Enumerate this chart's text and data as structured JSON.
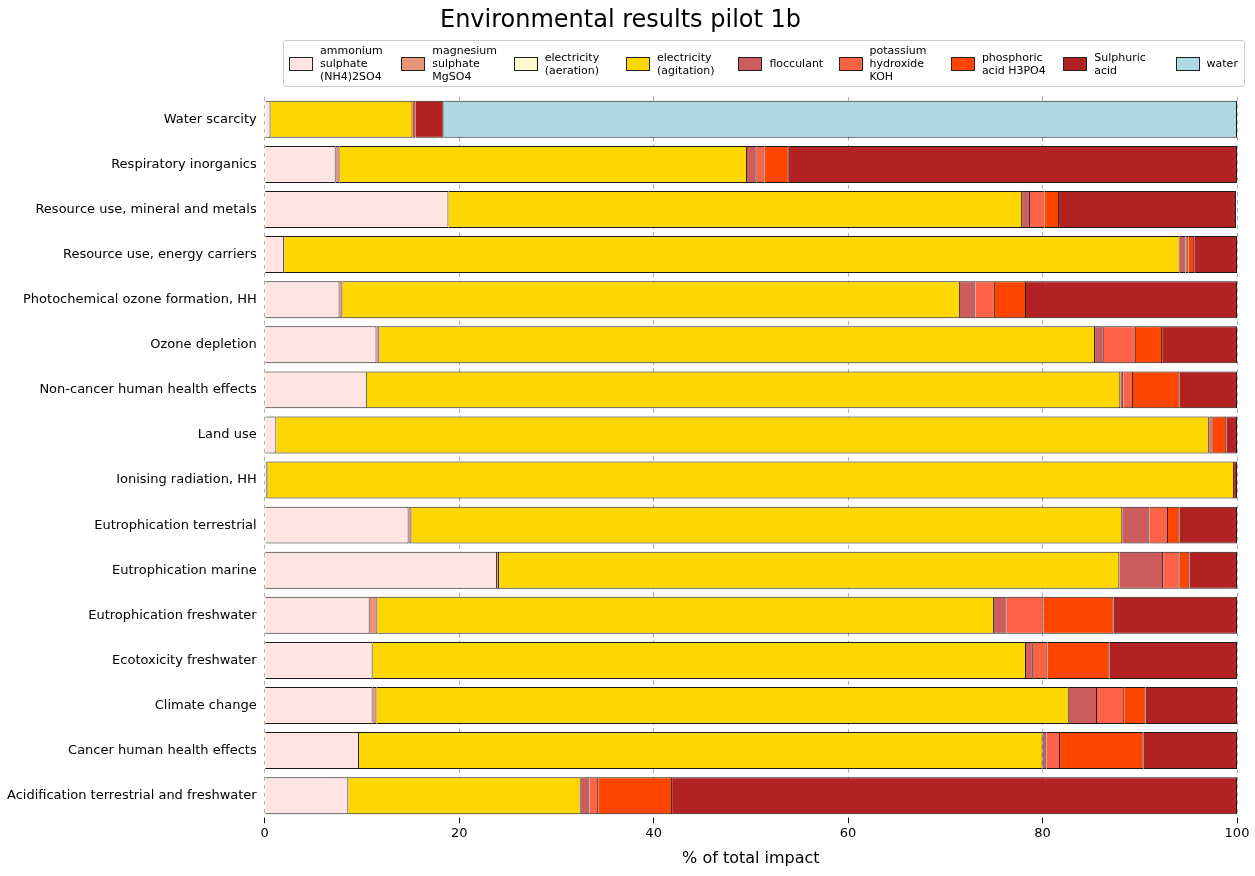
{
  "chart_data": {
    "type": "bar",
    "title": "Environmental results pilot 1b",
    "xlabel": "% of total impact",
    "orientation": "horizontal",
    "stacked": true,
    "grid": "x",
    "legend": "top",
    "xlim": [
      0,
      100
    ],
    "xticks": [
      0,
      20,
      40,
      60,
      80,
      100
    ],
    "categories": [
      "Water scarcity",
      "Respiratory inorganics",
      "Resource use, mineral and metals",
      "Resource use, energy carriers",
      "Photochemical ozone formation, HH",
      "Ozone depletion",
      "Non-cancer human health effects",
      "Land use",
      "Ionising radiation, HH",
      "Eutrophication terrestrial",
      "Eutrophication marine",
      "Eutrophication freshwater",
      "Ecotoxicity freshwater",
      "Climate change",
      "Cancer human health effects",
      "Acidification terrestrial and freshwater"
    ],
    "series": [
      {
        "name": "ammonium sulphate (NH4)2SO4",
        "color": "#ffe4e1",
        "values": [
          0.6,
          7.3,
          18.9,
          2.0,
          7.7,
          11.5,
          10.5,
          1.2,
          0.2,
          14.8,
          23.9,
          10.8,
          11.1,
          11.1,
          9.7,
          8.6
        ]
      },
      {
        "name": "magnesium sulphate MgSO4",
        "color": "#e9967a",
        "values": [
          0,
          0.4,
          null,
          0,
          0.3,
          0.3,
          0,
          0,
          0.1,
          0.3,
          0.2,
          0.8,
          0,
          0.4,
          0,
          0
        ]
      },
      {
        "name": "electricity (aeration)",
        "color": "#fffacd",
        "values": [
          0,
          0,
          0,
          0,
          0,
          0,
          0,
          0,
          0,
          0,
          0,
          0,
          0,
          0,
          0,
          0
        ]
      },
      {
        "name": "electricity (agitation)",
        "color": "#ffd700",
        "values": [
          14.6,
          41.9,
          59.0,
          92.1,
          63.5,
          73.6,
          77.5,
          95.9,
          99.4,
          73.1,
          63.8,
          63.4,
          67.2,
          71.2,
          70.3,
          23.9
        ]
      },
      {
        "name": "flocculant",
        "color": "#cd5c5c",
        "values": [
          0,
          1.0,
          0.8,
          0.6,
          1.6,
          0.9,
          0.3,
          0.1,
          0,
          2.8,
          4.5,
          1.3,
          0.7,
          2.9,
          0.4,
          0.9
        ]
      },
      {
        "name": "potassium hydroxide KOH",
        "color": "#ff6347",
        "values": [
          0,
          0.8,
          1.5,
          0.3,
          2.0,
          3.3,
          1.0,
          0.3,
          0,
          1.9,
          1.7,
          3.8,
          1.5,
          2.8,
          1.4,
          0.9
        ]
      },
      {
        "name": "phosphoric acid H3PO4",
        "color": "#ff4500",
        "values": [
          0.3,
          2.5,
          1.5,
          0.6,
          3.2,
          2.7,
          4.8,
          1.4,
          0,
          1.2,
          1.0,
          7.2,
          6.4,
          2.2,
          8.6,
          7.6
        ]
      },
      {
        "name": "Sulphuric acid",
        "color": "#b22222",
        "values": [
          2.9,
          46.1,
          18.2,
          4.4,
          21.7,
          7.7,
          5.9,
          1.1,
          0.3,
          5.9,
          4.9,
          12.7,
          13.1,
          9.4,
          9.6,
          58.1
        ]
      },
      {
        "name": "water",
        "color": "#add8e6",
        "values": [
          81.6,
          0,
          0,
          0,
          0,
          0,
          0,
          0,
          0,
          0,
          0,
          0,
          0,
          0,
          0,
          0
        ]
      }
    ]
  }
}
